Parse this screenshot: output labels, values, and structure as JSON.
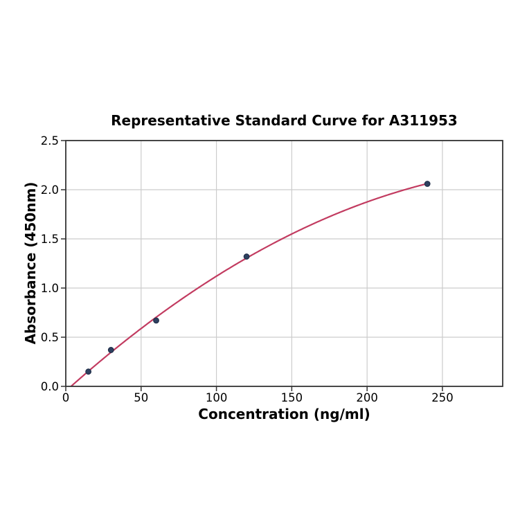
{
  "chart_data": {
    "type": "scatter",
    "title": "Representative Standard Curve for A311953",
    "xlabel": "Concentration (ng/ml)",
    "ylabel": "Absorbance (450nm)",
    "xlim": [
      0,
      290
    ],
    "ylim": [
      0,
      2.5
    ],
    "xticks": [
      0,
      50,
      100,
      150,
      200,
      250
    ],
    "xtick_labels": [
      "0",
      "50",
      "100",
      "150",
      "200",
      "250"
    ],
    "yticks": [
      0,
      0.5,
      1.0,
      1.5,
      2.0,
      2.5
    ],
    "ytick_labels": [
      "0.0",
      "0.5",
      "1.0",
      "1.5",
      "2.0",
      "2.5"
    ],
    "grid": true,
    "legend": "none",
    "series": [
      {
        "name": "standard-points",
        "type": "scatter",
        "x": [
          15,
          30,
          60,
          120,
          240
        ],
        "y": [
          0.15,
          0.37,
          0.67,
          1.32,
          2.06
        ]
      },
      {
        "name": "fitted-curve",
        "type": "line",
        "fit": {
          "kind": "quadratic",
          "a": -2.0659e-05,
          "b": 0.0137487,
          "c": -0.04762
        },
        "x_range": [
          0,
          240
        ]
      }
    ],
    "colors": {
      "curve": "#c23b60",
      "marker": "#2e4160",
      "marker_edge": "#202e49",
      "grid": "#cccccc",
      "spine": "#333333",
      "text": "#000000",
      "background": "#ffffff"
    }
  }
}
